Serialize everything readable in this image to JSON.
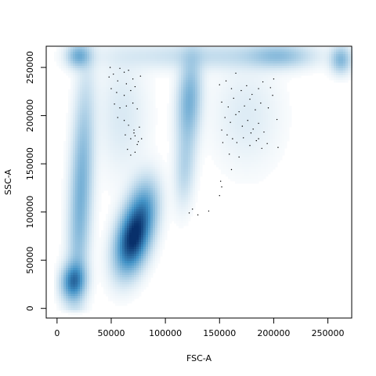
{
  "chart_data": {
    "type": "heatmap",
    "subtype": "smoothed-density-scatter",
    "title": "",
    "xlabel": "FSC-A",
    "ylabel": "SSC-A",
    "xlim": [
      -10000,
      272000
    ],
    "ylim": [
      -10000,
      272000
    ],
    "xticks": [
      0,
      50000,
      100000,
      150000,
      200000,
      250000
    ],
    "yticks": [
      0,
      50000,
      100000,
      150000,
      200000,
      250000
    ],
    "color_scale": {
      "low": "#ffffff",
      "high": "#08306b"
    },
    "grid": false,
    "density_blobs": [
      {
        "x": 70000,
        "y": 72000,
        "sx": 10000,
        "sy": 22000,
        "rho": 0.35,
        "w": 1.0
      },
      {
        "x": 80000,
        "y": 105000,
        "sx": 9000,
        "sy": 20000,
        "rho": 0.2,
        "w": 0.35
      },
      {
        "x": 15000,
        "y": 28000,
        "sx": 7000,
        "sy": 12000,
        "rho": 0.1,
        "w": 0.6
      },
      {
        "x": 22000,
        "y": 120000,
        "sx": 7000,
        "sy": 70000,
        "rho": 0.4,
        "w": 0.35
      },
      {
        "x": 122000,
        "y": 215000,
        "sx": 7000,
        "sy": 30000,
        "rho": 0.2,
        "w": 0.35
      },
      {
        "x": 118000,
        "y": 145000,
        "sx": 6000,
        "sy": 25000,
        "rho": 0.2,
        "w": 0.15
      },
      {
        "x": 20000,
        "y": 262000,
        "sx": 7000,
        "sy": 8000,
        "rho": 0.0,
        "w": 0.35
      },
      {
        "x": 140000,
        "y": 262000,
        "sx": 60000,
        "sy": 9000,
        "rho": 0.0,
        "w": 0.12
      },
      {
        "x": 205000,
        "y": 262000,
        "sx": 18000,
        "sy": 8000,
        "rho": 0.0,
        "w": 0.22
      },
      {
        "x": 262000,
        "y": 258000,
        "sx": 6000,
        "sy": 9000,
        "rho": 0.0,
        "w": 0.3
      },
      {
        "x": 60000,
        "y": 200000,
        "sx": 15000,
        "sy": 40000,
        "rho": 0.0,
        "w": 0.07
      },
      {
        "x": 175000,
        "y": 200000,
        "sx": 20000,
        "sy": 35000,
        "rho": 0.0,
        "w": 0.06
      }
    ],
    "outlier_points": [
      [
        49000,
        250000
      ],
      [
        52000,
        243000
      ],
      [
        58000,
        249000
      ],
      [
        62000,
        245000
      ],
      [
        66000,
        247000
      ],
      [
        48000,
        240000
      ],
      [
        56000,
        236000
      ],
      [
        64000,
        233000
      ],
      [
        70000,
        238000
      ],
      [
        77000,
        241000
      ],
      [
        50000,
        228000
      ],
      [
        55000,
        224000
      ],
      [
        62000,
        221000
      ],
      [
        68000,
        226000
      ],
      [
        72000,
        230000
      ],
      [
        53000,
        212000
      ],
      [
        58000,
        208000
      ],
      [
        64000,
        210000
      ],
      [
        70000,
        213000
      ],
      [
        74000,
        207000
      ],
      [
        56000,
        198000
      ],
      [
        62000,
        195000
      ],
      [
        66000,
        190000
      ],
      [
        71000,
        185000
      ],
      [
        76000,
        188000
      ],
      [
        63000,
        180000
      ],
      [
        68000,
        176000
      ],
      [
        72000,
        179000
      ],
      [
        75000,
        173000
      ],
      [
        78000,
        176000
      ],
      [
        65000,
        165000
      ],
      [
        68000,
        159000
      ],
      [
        72000,
        162000
      ],
      [
        74000,
        170000
      ],
      [
        71000,
        182000
      ],
      [
        150000,
        232000
      ],
      [
        156000,
        236000
      ],
      [
        161000,
        228000
      ],
      [
        165000,
        244000
      ],
      [
        170000,
        226000
      ],
      [
        175000,
        231000
      ],
      [
        180000,
        222000
      ],
      [
        186000,
        228000
      ],
      [
        190000,
        235000
      ],
      [
        197000,
        229000
      ],
      [
        200000,
        238000
      ],
      [
        152000,
        214000
      ],
      [
        158000,
        209000
      ],
      [
        163000,
        218000
      ],
      [
        168000,
        204000
      ],
      [
        173000,
        210000
      ],
      [
        178000,
        217000
      ],
      [
        183000,
        206000
      ],
      [
        188000,
        213000
      ],
      [
        195000,
        208000
      ],
      [
        199000,
        221000
      ],
      [
        155000,
        198000
      ],
      [
        160000,
        193000
      ],
      [
        165000,
        201000
      ],
      [
        171000,
        189000
      ],
      [
        176000,
        195000
      ],
      [
        181000,
        186000
      ],
      [
        186000,
        192000
      ],
      [
        191000,
        183000
      ],
      [
        203000,
        196000
      ],
      [
        152000,
        185000
      ],
      [
        157000,
        180000
      ],
      [
        162000,
        176000
      ],
      [
        166000,
        172000
      ],
      [
        172000,
        177000
      ],
      [
        178000,
        169000
      ],
      [
        184000,
        174000
      ],
      [
        189000,
        166000
      ],
      [
        194000,
        171000
      ],
      [
        204000,
        167000
      ],
      [
        153000,
        172000
      ],
      [
        159000,
        160000
      ],
      [
        168000,
        157000
      ],
      [
        161000,
        144000
      ],
      [
        152000,
        126000
      ],
      [
        150000,
        117000
      ],
      [
        151000,
        132000
      ],
      [
        125000,
        103000
      ],
      [
        122000,
        99000
      ],
      [
        130000,
        97000
      ],
      [
        140000,
        101000
      ],
      [
        186000,
        176000
      ],
      [
        179000,
        182000
      ]
    ]
  }
}
